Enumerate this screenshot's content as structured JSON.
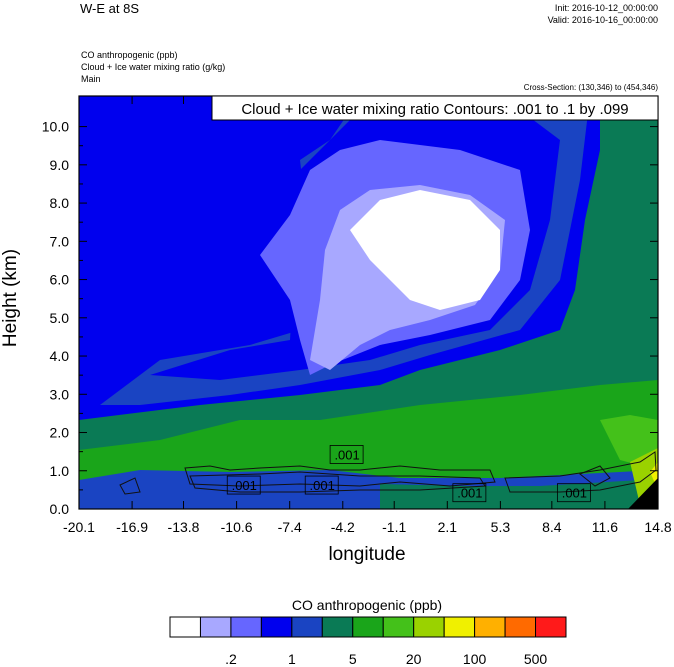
{
  "header": {
    "title": "W-E at 8S",
    "init": "Init: 2016-10-12_00:00:00",
    "valid": "Valid: 2016-10-16_00:00:00",
    "field1": "CO anthropogenic   (ppb)",
    "field2": "Cloud + Ice water mixing ratio   (g/kg)",
    "field3": "Main",
    "cross_section": "Cross-Section: (130,346) to (454,346)"
  },
  "chart_data": {
    "type": "heatmap",
    "title": "W-E at 8S",
    "xlabel": "longitude",
    "ylabel": "Height (km)",
    "xlim": [
      -20.1,
      14.8
    ],
    "ylim": [
      0,
      10.8
    ],
    "x_ticks": [
      "-20.1",
      "-16.9",
      "-13.8",
      "-10.6",
      "-7.4",
      "-4.2",
      "-1.1",
      "2.1",
      "5.3",
      "8.4",
      "11.6",
      "14.8"
    ],
    "y_ticks": [
      "0.0",
      "1.0",
      "2.0",
      "3.0",
      "4.0",
      "5.0",
      "6.0",
      "7.0",
      "8.0",
      "9.0",
      "10.0"
    ],
    "contour_note": "Cloud + Ice water mixing ratio Contours: .001 to .1 by .099",
    "contour_labels": [
      {
        "text": ".001",
        "x": -4.0,
        "y": 1.4
      },
      {
        "text": ".001",
        "x": -10.2,
        "y": 0.6
      },
      {
        "text": ".001",
        "x": -5.5,
        "y": 0.6
      },
      {
        "text": ".001",
        "x": 3.4,
        "y": 0.4
      },
      {
        "text": ".001",
        "x": 9.7,
        "y": 0.4
      }
    ],
    "colorbar": {
      "title": "CO anthropogenic  (ppb)",
      "colors": [
        "#ffffff",
        "#a8a8ff",
        "#6666ff",
        "#0000ee",
        "#1a44c2",
        "#0a7a55",
        "#1aa51a",
        "#44c11a",
        "#9ad200",
        "#f0f000",
        "#ffb000",
        "#ff6a00",
        "#ff1a1a"
      ],
      "labels": [
        ".2",
        "1",
        "5",
        "20",
        "100",
        "500"
      ]
    }
  }
}
